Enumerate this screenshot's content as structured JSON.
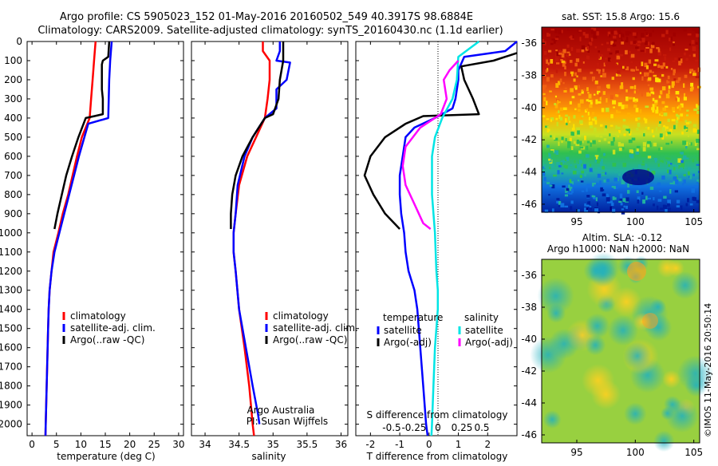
{
  "header": {
    "line1": "Argo profile: CS 5905023_152 01-May-2016 20160502_549 40.3917S 98.6884E",
    "line2": "Climatology: CARS2009. Satellite-adjusted climatology: synTS_20160430.nc (1.1d earlier)"
  },
  "colors": {
    "climatology": "#ff0000",
    "satellite": "#0000ff",
    "argo": "#000000",
    "salinity_satellite": "#00e5e5",
    "salinity_argo": "#ff00ff"
  },
  "depth_ticks": [
    "0",
    "100",
    "200",
    "300",
    "400",
    "500",
    "600",
    "700",
    "800",
    "900",
    "1000",
    "1100",
    "1200",
    "1300",
    "1400",
    "1500",
    "1600",
    "1700",
    "1800",
    "1900",
    "2000"
  ],
  "chart_data": [
    {
      "type": "line",
      "id": "temperature",
      "xlabel": "temperature (deg C)",
      "xlim": [
        -1,
        31
      ],
      "ylim": [
        0,
        2060
      ],
      "x_ticks": [
        "0",
        "5",
        "10",
        "15",
        "20",
        "25",
        "30"
      ],
      "legend": [
        {
          "label": "climatology",
          "color_key": "climatology"
        },
        {
          "label": "satellite-adj. clim.",
          "color_key": "satellite"
        },
        {
          "label": "Argo(..raw -QC)",
          "color_key": "argo"
        }
      ],
      "series": [
        {
          "name": "climatology",
          "color_key": "climatology",
          "points": [
            [
              13,
              0
            ],
            [
              12.7,
              100
            ],
            [
              12.4,
              200
            ],
            [
              12.1,
              300
            ],
            [
              11.8,
              400
            ],
            [
              10.2,
              500
            ],
            [
              9.2,
              600
            ],
            [
              8.3,
              700
            ],
            [
              7.4,
              800
            ],
            [
              6.3,
              900
            ],
            [
              5.4,
              1000
            ],
            [
              4.4,
              1100
            ],
            [
              4.0,
              1200
            ],
            [
              3.6,
              1300
            ],
            [
              3.4,
              1400
            ],
            [
              3.3,
              1500
            ],
            [
              3.2,
              1600
            ],
            [
              3.1,
              1700
            ],
            [
              3.0,
              1800
            ],
            [
              2.9,
              1900
            ],
            [
              2.8,
              2000
            ],
            [
              2.75,
              2060
            ]
          ]
        },
        {
          "name": "satellite-adj. clim.",
          "color_key": "satellite",
          "points": [
            [
              16.3,
              0
            ],
            [
              16,
              100
            ],
            [
              15.8,
              200
            ],
            [
              15.7,
              300
            ],
            [
              15.6,
              400
            ],
            [
              11.5,
              430
            ],
            [
              9.6,
              600
            ],
            [
              8.6,
              700
            ],
            [
              7.6,
              800
            ],
            [
              6.6,
              900
            ],
            [
              5.6,
              1000
            ],
            [
              4.6,
              1100
            ],
            [
              4.0,
              1200
            ],
            [
              3.6,
              1300
            ],
            [
              3.4,
              1400
            ],
            [
              3.3,
              1500
            ],
            [
              3.2,
              1600
            ],
            [
              3.1,
              1700
            ],
            [
              3.0,
              1800
            ],
            [
              2.9,
              1900
            ],
            [
              2.8,
              2000
            ],
            [
              2.75,
              2060
            ]
          ]
        },
        {
          "name": "Argo(..raw -QC)",
          "color_key": "argo",
          "points": [
            [
              15.8,
              0
            ],
            [
              15.6,
              80
            ],
            [
              14.5,
              100
            ],
            [
              14.3,
              120
            ],
            [
              14.3,
              250
            ],
            [
              14.5,
              300
            ],
            [
              14.5,
              380
            ],
            [
              12.8,
              390
            ],
            [
              11,
              400
            ],
            [
              9.5,
              500
            ],
            [
              8.2,
              600
            ],
            [
              7.0,
              700
            ],
            [
              6.1,
              800
            ],
            [
              5.2,
              900
            ],
            [
              4.6,
              980
            ]
          ]
        }
      ]
    },
    {
      "type": "line",
      "id": "salinity",
      "xlabel": "salinity",
      "xlim": [
        33.8,
        36.1
      ],
      "ylim": [
        0,
        2060
      ],
      "x_ticks": [
        "34",
        "34.5",
        "35",
        "35.5",
        "36"
      ],
      "legend": [
        {
          "label": "climatology",
          "color_key": "climatology"
        },
        {
          "label": "satellite-adj. clim.",
          "color_key": "satellite"
        },
        {
          "label": "Argo(..raw -QC)",
          "color_key": "argo"
        }
      ],
      "annotation": [
        "Argo Australia",
        "PI: Susan Wijffels"
      ],
      "series": [
        {
          "name": "climatology",
          "color_key": "climatology",
          "points": [
            [
              34.85,
              0
            ],
            [
              34.85,
              50
            ],
            [
              34.95,
              100
            ],
            [
              34.95,
              200
            ],
            [
              34.92,
              300
            ],
            [
              34.88,
              400
            ],
            [
              34.75,
              500
            ],
            [
              34.62,
              600
            ],
            [
              34.5,
              750
            ],
            [
              34.45,
              900
            ],
            [
              34.42,
              1000
            ],
            [
              34.42,
              1100
            ],
            [
              34.45,
              1200
            ],
            [
              34.5,
              1400
            ],
            [
              34.58,
              1600
            ],
            [
              34.65,
              1800
            ],
            [
              34.7,
              2000
            ],
            [
              34.72,
              2060
            ]
          ]
        },
        {
          "name": "satellite-adj. clim.",
          "color_key": "satellite",
          "points": [
            [
              35.1,
              0
            ],
            [
              35.1,
              50
            ],
            [
              35.05,
              100
            ],
            [
              35.25,
              110
            ],
            [
              35.2,
              200
            ],
            [
              35.05,
              250
            ],
            [
              35.05,
              350
            ],
            [
              34.88,
              400
            ],
            [
              34.7,
              500
            ],
            [
              34.58,
              600
            ],
            [
              34.48,
              750
            ],
            [
              34.45,
              900
            ],
            [
              34.42,
              1000
            ],
            [
              34.42,
              1100
            ],
            [
              34.45,
              1200
            ],
            [
              34.5,
              1400
            ],
            [
              34.6,
              1600
            ],
            [
              34.7,
              1800
            ],
            [
              34.78,
              1950
            ],
            [
              34.8,
              2000
            ]
          ]
        },
        {
          "name": "Argo(..raw -QC)",
          "color_key": "argo",
          "points": [
            [
              35.15,
              0
            ],
            [
              35.15,
              100
            ],
            [
              35.1,
              200
            ],
            [
              35.08,
              300
            ],
            [
              35.0,
              380
            ],
            [
              34.88,
              400
            ],
            [
              34.7,
              500
            ],
            [
              34.55,
              600
            ],
            [
              34.45,
              700
            ],
            [
              34.4,
              800
            ],
            [
              34.38,
              900
            ],
            [
              34.38,
              980
            ]
          ]
        }
      ]
    },
    {
      "type": "line",
      "id": "differences",
      "xlabel": "T difference from climatology",
      "x_ticks": [
        "-2",
        "-1",
        "0",
        "1",
        "2"
      ],
      "xlim": [
        -2.5,
        3
      ],
      "ylim": [
        0,
        2060
      ],
      "secondary_axis": {
        "label": "S difference from climatology",
        "ticks": [
          "-0.5",
          "-0.25",
          "0",
          "0.25",
          "0.5"
        ]
      },
      "legend_titles": {
        "temperature": "temperature",
        "salinity": "salinity"
      },
      "legend": [
        {
          "label": "satellite",
          "color_key": "satellite",
          "group": "temperature"
        },
        {
          "label": "Argo(-adj)",
          "color_key": "argo",
          "group": "temperature"
        },
        {
          "label": "satellite",
          "color_key": "salinity_satellite",
          "group": "salinity"
        },
        {
          "label": "Argo(-adj)",
          "color_key": "salinity_argo",
          "group": "salinity"
        }
      ],
      "series": [
        {
          "name": "T satellite",
          "color_key": "satellite",
          "points": [
            [
              3.0,
              0
            ],
            [
              2.6,
              50
            ],
            [
              1.2,
              80
            ],
            [
              1.0,
              150
            ],
            [
              1.0,
              200
            ],
            [
              0.9,
              300
            ],
            [
              0.8,
              350
            ],
            [
              0.2,
              400
            ],
            [
              -0.5,
              450
            ],
            [
              -0.8,
              500
            ],
            [
              -0.9,
              600
            ],
            [
              -1.0,
              700
            ],
            [
              -1.0,
              800
            ],
            [
              -0.95,
              900
            ],
            [
              -0.85,
              1000
            ],
            [
              -0.8,
              1100
            ],
            [
              -0.7,
              1200
            ],
            [
              -0.5,
              1300
            ],
            [
              -0.4,
              1400
            ],
            [
              -0.3,
              1600
            ],
            [
              -0.2,
              1800
            ],
            [
              -0.1,
              2000
            ],
            [
              -0.05,
              2060
            ]
          ]
        },
        {
          "name": "T Argo(-adj)",
          "color_key": "argo",
          "points": [
            [
              3.0,
              60
            ],
            [
              2.2,
              100
            ],
            [
              1.1,
              130
            ],
            [
              1.2,
              200
            ],
            [
              1.5,
              300
            ],
            [
              1.7,
              380
            ],
            [
              -0.2,
              390
            ],
            [
              -0.8,
              430
            ],
            [
              -1.5,
              500
            ],
            [
              -2.0,
              600
            ],
            [
              -2.2,
              700
            ],
            [
              -1.9,
              800
            ],
            [
              -1.5,
              900
            ],
            [
              -1.0,
              980
            ]
          ]
        },
        {
          "name": "S satellite",
          "color_key": "salinity_satellite",
          "points": [
            [
              1.7,
              0
            ],
            [
              1.0,
              80
            ],
            [
              0.95,
              200
            ],
            [
              0.8,
              300
            ],
            [
              0.45,
              400
            ],
            [
              0.2,
              500
            ],
            [
              0.1,
              600
            ],
            [
              0.1,
              800
            ],
            [
              0.2,
              1000
            ],
            [
              0.25,
              1200
            ],
            [
              0.3,
              1300
            ],
            [
              0.3,
              1400
            ],
            [
              0.2,
              1600
            ],
            [
              0.15,
              1800
            ],
            [
              0.1,
              2000
            ],
            [
              0.08,
              2060
            ]
          ]
        },
        {
          "name": "S Argo(-adj)",
          "color_key": "salinity_argo",
          "points": [
            [
              1.0,
              100
            ],
            [
              0.7,
              150
            ],
            [
              0.5,
              200
            ],
            [
              0.6,
              300
            ],
            [
              0.4,
              380
            ],
            [
              -0.3,
              450
            ],
            [
              -0.8,
              550
            ],
            [
              -0.9,
              650
            ],
            [
              -0.8,
              750
            ],
            [
              -0.5,
              850
            ],
            [
              -0.2,
              950
            ],
            [
              0.05,
              980
            ]
          ]
        }
      ]
    },
    {
      "type": "heatmap",
      "id": "sst_map",
      "title": "sat. SST: 15.8 Argo: 15.6",
      "x_ticks": [
        "95",
        "100",
        "105"
      ],
      "y_ticks": [
        "-36",
        "-38",
        "-40",
        "-42",
        "-44",
        "-46"
      ],
      "xlim": [
        92,
        105.5
      ],
      "ylim": [
        -46.5,
        -35
      ]
    },
    {
      "type": "heatmap",
      "id": "sla_map",
      "title_lines": [
        "Altim. SLA: -0.12",
        "Argo h1000: NaN h2000: NaN"
      ],
      "x_ticks": [
        "95",
        "100",
        "105"
      ],
      "y_ticks": [
        "-36",
        "-38",
        "-40",
        "-42",
        "-44",
        "-46"
      ],
      "xlim": [
        92,
        105.5
      ],
      "ylim": [
        -46.5,
        -35
      ]
    }
  ],
  "footer": {
    "copyright": "©IMOS 11-May-2016 20:50:14"
  }
}
